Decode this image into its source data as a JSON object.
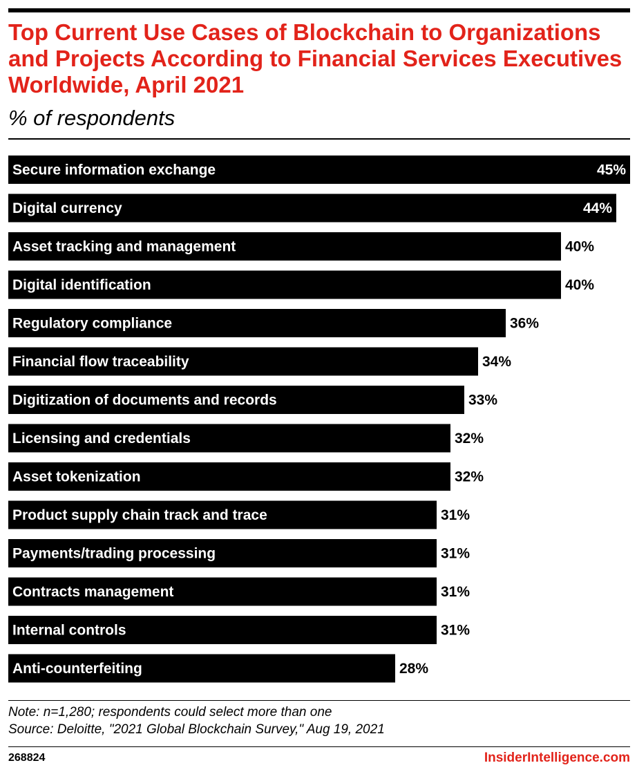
{
  "header": {
    "title": "Top Current Use Cases of Blockchain to Organizations and Projects According to Financial Services Executives Worldwide, April 2021",
    "subtitle": "% of respondents"
  },
  "chart_data": {
    "type": "bar",
    "orientation": "horizontal",
    "title": "Top Current Use Cases of Blockchain to Organizations and Projects According to Financial Services Executives Worldwide, April 2021",
    "subtitle": "% of respondents",
    "categories": [
      "Secure information exchange",
      "Digital currency",
      "Asset tracking and management",
      "Digital identification",
      "Regulatory compliance",
      "Financial flow traceability",
      "Digitization of documents and records",
      "Licensing and credentials",
      "Asset tokenization",
      "Product supply chain track and trace",
      "Payments/trading processing",
      "Contracts management",
      "Internal controls",
      "Anti-counterfeiting"
    ],
    "values": [
      45,
      44,
      40,
      40,
      36,
      34,
      33,
      32,
      32,
      31,
      31,
      31,
      31,
      28
    ],
    "value_labels": [
      "45%",
      "44%",
      "40%",
      "40%",
      "36%",
      "34%",
      "33%",
      "32%",
      "32%",
      "31%",
      "31%",
      "31%",
      "31%",
      "28%"
    ],
    "xlim": [
      0,
      45
    ],
    "bar_color": "#000000",
    "grid": false
  },
  "footer": {
    "note": "Note: n=1,280; respondents could select more than one",
    "source": "Source: Deloitte, \"2021 Global Blockchain Survey,\" Aug 19, 2021",
    "chart_id": "268824",
    "brand": "InsiderIntelligence.com"
  },
  "colors": {
    "title": "#e2231a",
    "bar": "#000000",
    "bar_label": "#ffffff"
  }
}
